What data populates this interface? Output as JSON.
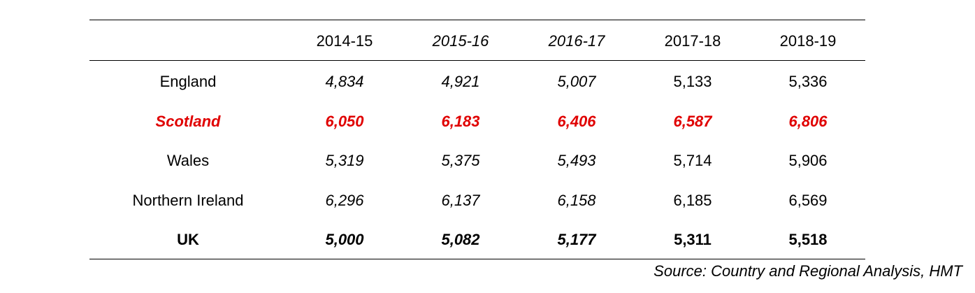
{
  "table": {
    "columns": [
      "2014-15",
      "2015-16",
      "2016-17",
      "2017-18",
      "2018-19"
    ],
    "rows": [
      {
        "label": "England",
        "values": [
          "4,834",
          "4,921",
          "5,007",
          "5,133",
          "5,336"
        ]
      },
      {
        "label": "Scotland",
        "values": [
          "6,050",
          "6,183",
          "6,406",
          "6,587",
          "6,806"
        ]
      },
      {
        "label": "Wales",
        "values": [
          "5,319",
          "5,375",
          "5,493",
          "5,714",
          "5,906"
        ]
      },
      {
        "label": "Northern Ireland",
        "values": [
          "6,296",
          "6,137",
          "6,158",
          "6,185",
          "6,569"
        ]
      },
      {
        "label": "UK",
        "values": [
          "5,000",
          "5,082",
          "5,177",
          "5,311",
          "5,518"
        ]
      }
    ],
    "source": "Source: Country and Regional Analysis, HMT"
  }
}
